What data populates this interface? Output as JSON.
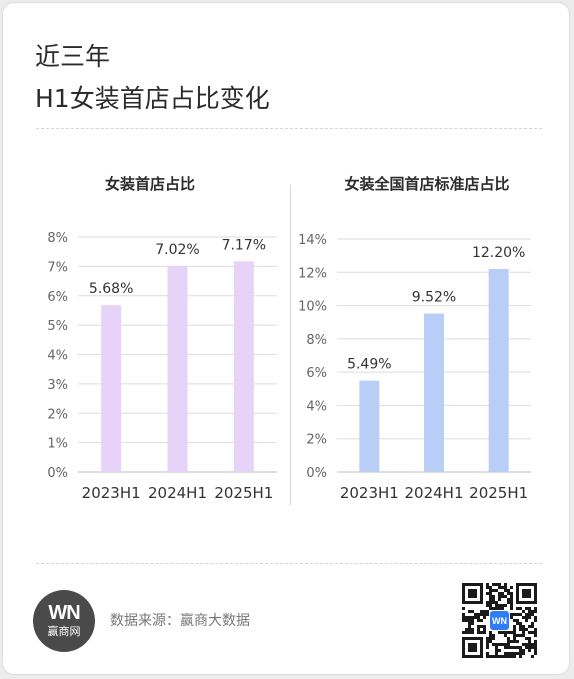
{
  "header": {
    "title_line1": "近三年",
    "title_line2": "H1女装首店占比变化"
  },
  "colors": {
    "left_bar": "#e7d3f7",
    "right_bar": "#b9cef7",
    "grid": "#dedede",
    "axis": "#bdbdbd"
  },
  "chart_data": [
    {
      "type": "bar",
      "title": "女装首店占比",
      "categories": [
        "2023H1",
        "2024H1",
        "2025H1"
      ],
      "values": [
        5.68,
        7.02,
        7.17
      ],
      "value_labels": [
        "5.68%",
        "7.02%",
        "7.17%"
      ],
      "ylim": [
        0,
        8
      ],
      "yticks": [
        0,
        1,
        2,
        3,
        4,
        5,
        6,
        7,
        8
      ],
      "ytick_labels": [
        "0%",
        "1%",
        "2%",
        "3%",
        "4%",
        "5%",
        "6%",
        "7%",
        "8%"
      ],
      "grid": true,
      "xlabel": "",
      "ylabel": ""
    },
    {
      "type": "bar",
      "title": "女装全国首店标准店占比",
      "categories": [
        "2023H1",
        "2024H1",
        "2025H1"
      ],
      "values": [
        5.49,
        9.52,
        12.2
      ],
      "value_labels": [
        "5.49%",
        "9.52%",
        "12.20%"
      ],
      "ylim": [
        0,
        14
      ],
      "yticks": [
        0,
        2,
        4,
        6,
        8,
        10,
        12,
        14
      ],
      "ytick_labels": [
        "0%",
        "2%",
        "4%",
        "6%",
        "8%",
        "10%",
        "12%",
        "14%"
      ],
      "grid": true,
      "xlabel": "",
      "ylabel": ""
    }
  ],
  "footer": {
    "logo_mark": "WN",
    "logo_text": "赢商网",
    "source": "数据来源：赢商大数据",
    "qr_center_label": "WN"
  }
}
